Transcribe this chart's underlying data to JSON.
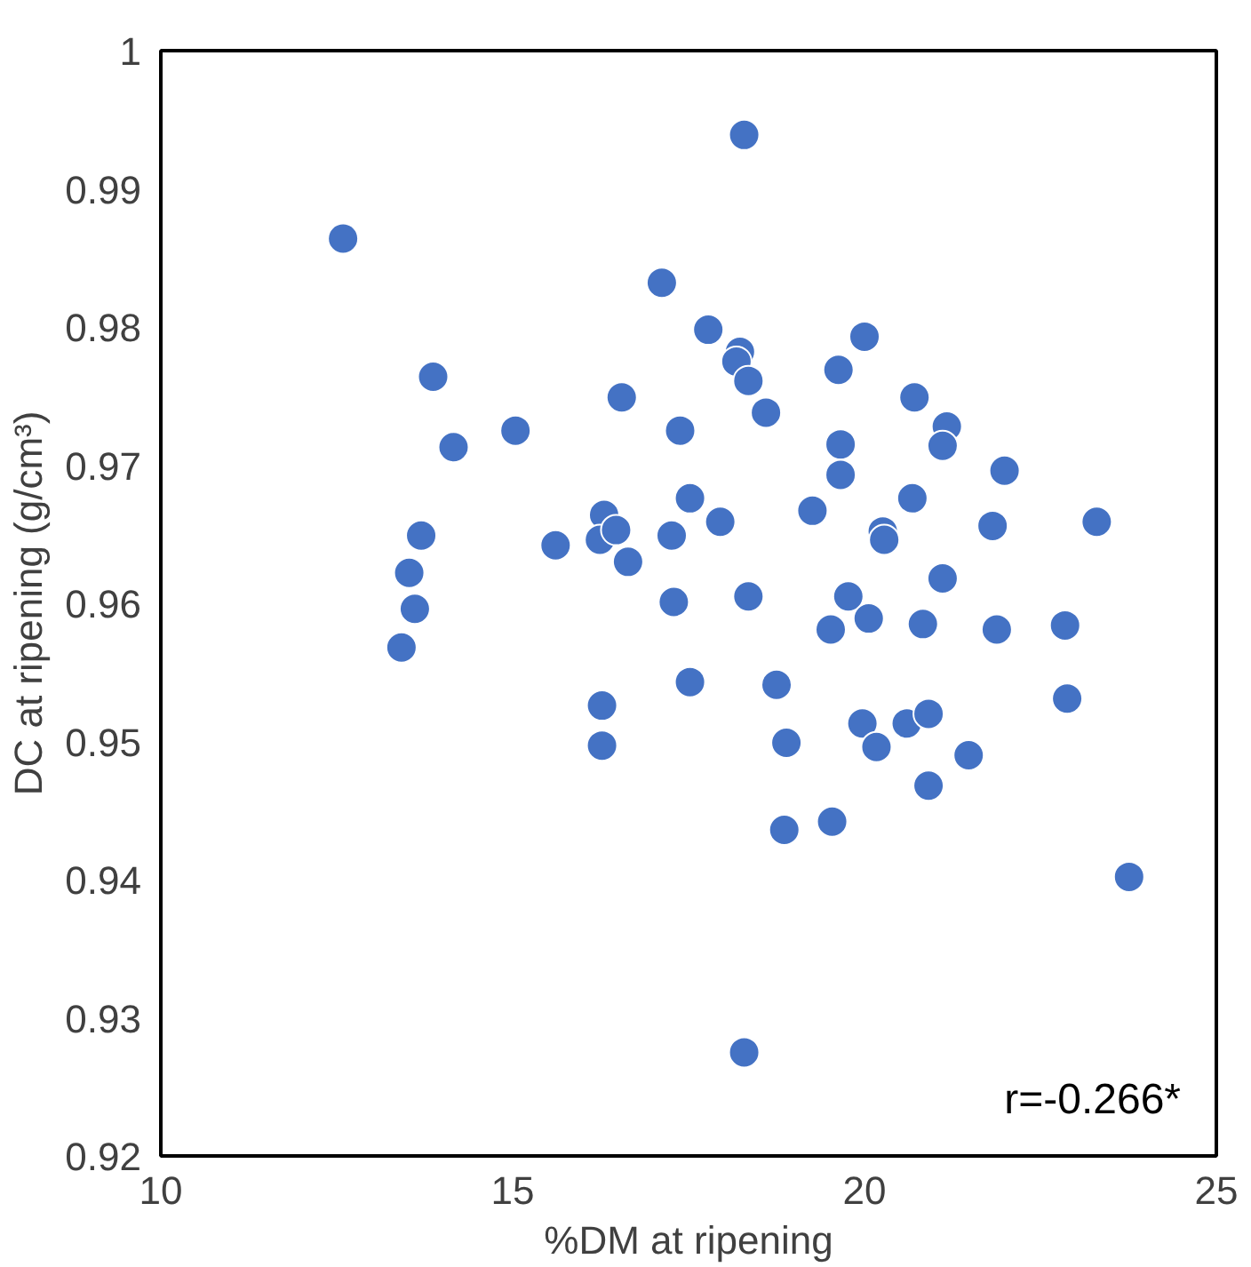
{
  "chart_data": {
    "type": "scatter",
    "xlabel": "%DM at ripening",
    "ylabel": "DC at ripening (g/cm³)",
    "annotations": [
      "r=-0.266*"
    ],
    "xlim": [
      10,
      25
    ],
    "xticks": [
      10,
      15,
      20,
      25
    ],
    "ylim": [
      0.92,
      1
    ],
    "yticks": [
      0.92,
      0.93,
      0.94,
      0.95,
      0.96,
      0.97,
      0.98,
      0.99,
      1
    ],
    "grid": false,
    "marker": "circle",
    "series": [
      {
        "color": "#4472c4",
        "x": [
          12.59,
          18.29,
          17.12,
          17.78,
          13.87,
          14.16,
          15.04,
          16.55,
          17.38,
          17.52,
          13.7,
          13.53,
          13.61,
          13.42,
          15.61,
          16.3,
          16.24,
          16.47,
          16.64,
          17.26,
          17.29,
          16.27,
          16.27,
          17.52,
          18.23,
          18.18,
          18.35,
          18.6,
          20.0,
          19.63,
          20.71,
          21.17,
          21.11,
          21.99,
          19.66,
          19.66,
          17.95,
          19.26,
          20.26,
          20.28,
          20.68,
          21.82,
          23.3,
          18.35,
          19.77,
          21.11,
          19.52,
          20.06,
          20.83,
          21.88,
          22.85,
          22.88,
          18.75,
          19.97,
          20.6,
          20.91,
          18.89,
          20.17,
          21.48,
          20.91,
          18.86,
          19.54,
          23.76,
          18.29
        ],
        "values": [
          0.9864,
          0.9939,
          0.9832,
          0.9798,
          0.9764,
          0.9713,
          0.9725,
          0.9749,
          0.9725,
          0.9676,
          0.9649,
          0.9622,
          0.9596,
          0.9568,
          0.9642,
          0.9664,
          0.9646,
          0.9653,
          0.963,
          0.9649,
          0.9601,
          0.9526,
          0.9497,
          0.9543,
          0.9782,
          0.9775,
          0.9761,
          0.9738,
          0.9793,
          0.9769,
          0.9749,
          0.9728,
          0.9714,
          0.9696,
          0.9715,
          0.9693,
          0.9659,
          0.9667,
          0.9652,
          0.9646,
          0.9676,
          0.9656,
          0.9659,
          0.9605,
          0.9605,
          0.9618,
          0.9581,
          0.9589,
          0.9585,
          0.9581,
          0.9584,
          0.9531,
          0.9541,
          0.9513,
          0.9513,
          0.952,
          0.9499,
          0.9496,
          0.949,
          0.9468,
          0.9436,
          0.9442,
          0.9402,
          0.9275
        ]
      }
    ]
  }
}
